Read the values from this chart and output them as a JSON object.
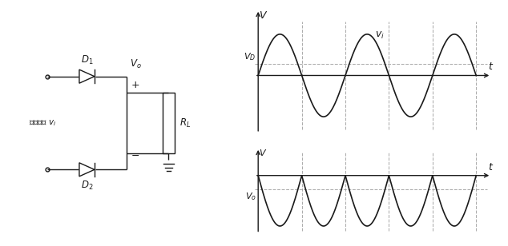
{
  "bg_color": "#ffffff",
  "dashed_color": "#999999",
  "wave_color": "#1a1a1a",
  "circuit_color": "#1a1a1a",
  "amplitude": 1.0,
  "vd_level": 0.28,
  "vo_level": -0.28,
  "n_periods": 2.5,
  "n_points": 2000,
  "T": 6.2831853
}
